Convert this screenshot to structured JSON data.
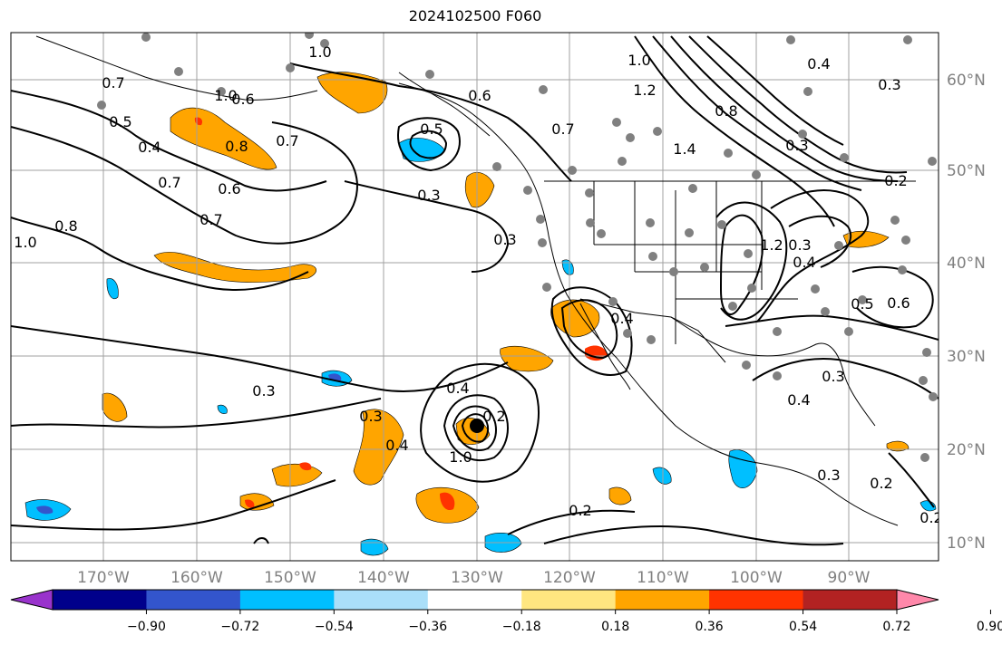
{
  "title": "2024102500 F060",
  "map": {
    "lon_labels": [
      "170°W",
      "160°W",
      "150°W",
      "140°W",
      "130°W",
      "120°W",
      "110°W",
      "100°W",
      "90°W"
    ],
    "lat_labels": [
      "60°N",
      "50°N",
      "40°N",
      "30°N",
      "20°N",
      "10°N"
    ],
    "contour_labels": [
      {
        "text": "1.0"
      },
      {
        "text": "0.7"
      },
      {
        "text": "0.5"
      },
      {
        "text": "0.4"
      },
      {
        "text": "0.8"
      },
      {
        "text": "0.7"
      },
      {
        "text": "0.6"
      },
      {
        "text": "0.7"
      },
      {
        "text": "0.8"
      },
      {
        "text": "1.0"
      },
      {
        "text": "0.7"
      },
      {
        "text": "1.0"
      },
      {
        "text": "0.6"
      },
      {
        "text": "0.5"
      },
      {
        "text": "0.3"
      },
      {
        "text": "0.6"
      },
      {
        "text": "0.7"
      },
      {
        "text": "1.0"
      },
      {
        "text": "1.2"
      },
      {
        "text": "1.4"
      },
      {
        "text": "0.8"
      },
      {
        "text": "0.4"
      },
      {
        "text": "0.3"
      },
      {
        "text": "0.3"
      },
      {
        "text": "0.2"
      },
      {
        "text": "1.2"
      },
      {
        "text": "0.5"
      },
      {
        "text": "0.6"
      },
      {
        "text": "0.4"
      },
      {
        "text": "0.3"
      },
      {
        "text": "0.4"
      },
      {
        "text": "0.3"
      },
      {
        "text": "0.2"
      },
      {
        "text": "0.3"
      },
      {
        "text": "0.2"
      },
      {
        "text": "0.3"
      },
      {
        "text": "0.3"
      },
      {
        "text": "0.4"
      },
      {
        "text": "0.4"
      },
      {
        "text": "1.0"
      },
      {
        "text": "0.2"
      },
      {
        "text": "0.3"
      },
      {
        "text": "0.4"
      },
      {
        "text": "0.2"
      }
    ]
  },
  "colorbar": {
    "colors": [
      "#9933cc",
      "#00008b",
      "#3355cc",
      "#00bfff",
      "#aadff9",
      "#ffffff",
      "#ffe680",
      "#ffa500",
      "#ff3300",
      "#b22222",
      "#ff88aa"
    ],
    "tick_labels": [
      "−0.90",
      "−0.72",
      "−0.54",
      "−0.36",
      "−0.18",
      "0.18",
      "0.36",
      "0.54",
      "0.72",
      "0.90"
    ]
  }
}
